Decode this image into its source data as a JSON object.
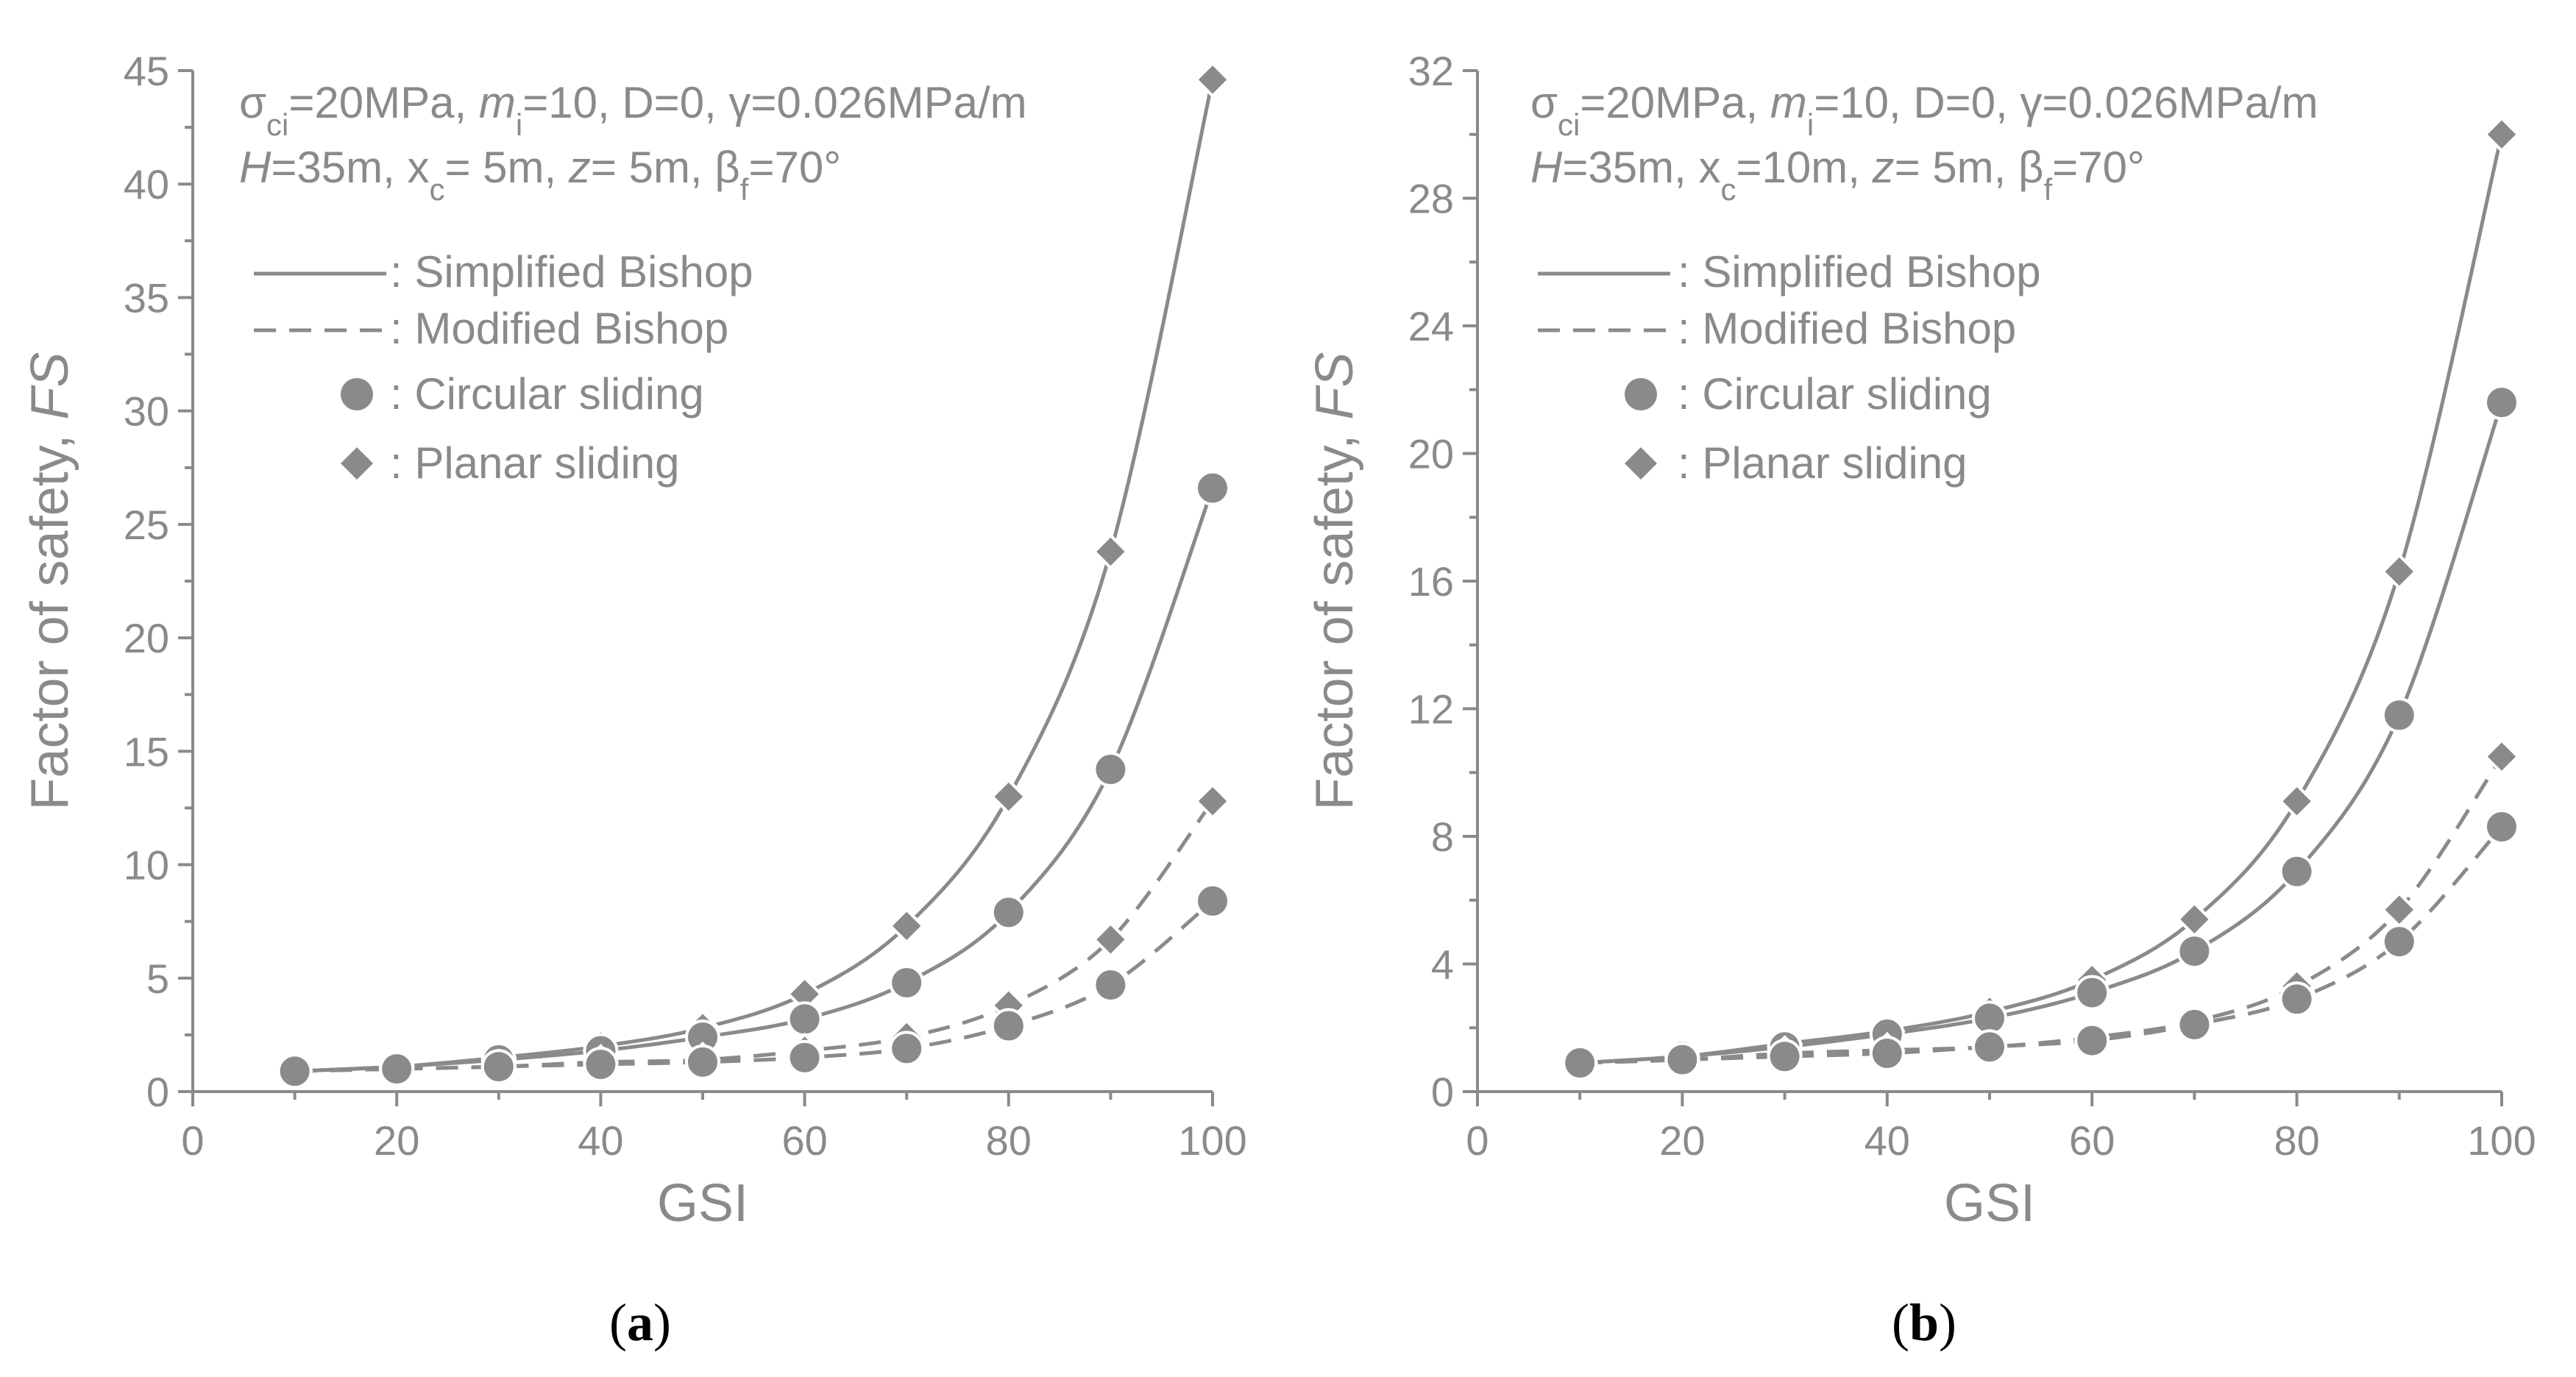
{
  "colors": {
    "ink": "#8a8a8a",
    "marker_outline": "#ffffff",
    "label": "#000000"
  },
  "chart_data": [
    {
      "type": "line",
      "panel_label_open": "(",
      "panel_label_letter": "a",
      "panel_label_close": ")",
      "xlabel": "GSI",
      "ylabel_main": "Factor of safety, ",
      "ylabel_italic": "FS",
      "xlim": [
        0,
        100
      ],
      "ylim": [
        0,
        45
      ],
      "xticks": [
        0,
        20,
        40,
        60,
        80,
        100
      ],
      "yticks": [
        0,
        5,
        10,
        15,
        20,
        25,
        30,
        35,
        40,
        45
      ],
      "grid": false,
      "annotation": {
        "line1": {
          "sigma": "σ",
          "ci": "ci",
          "p1": "=20MPa, ",
          "m": "m",
          "i": "i",
          "p2": "=10, D=0, γ=0.026MPa/m"
        },
        "line2": {
          "H": "H",
          "p1": "=35m, x",
          "c": "c",
          "p2": "= 5m, ",
          "z": "z",
          "p3": "= 5m,  β",
          "f": "f",
          "p4": "=70°"
        }
      },
      "legend": [
        {
          "marker": "solid-line",
          "label": ": Simplified Bishop"
        },
        {
          "marker": "dashed-line",
          "label": ": Modified Bishop"
        },
        {
          "marker": "circle",
          "label": ": Circular sliding"
        },
        {
          "marker": "diamond",
          "label": ": Planar sliding"
        }
      ],
      "x": [
        10,
        20,
        30,
        40,
        50,
        60,
        70,
        80,
        90,
        100
      ],
      "series": [
        {
          "name": "Simplified Bishop - Planar sliding",
          "line": "solid",
          "marker": "diamond",
          "values": [
            0.9,
            1.1,
            1.5,
            2.0,
            2.8,
            4.3,
            7.3,
            13.0,
            23.8,
            44.6
          ]
        },
        {
          "name": "Simplified Bishop - Circular sliding",
          "line": "solid",
          "marker": "circle",
          "values": [
            0.9,
            1.1,
            1.4,
            1.8,
            2.4,
            3.2,
            4.8,
            7.9,
            14.2,
            26.6
          ]
        },
        {
          "name": "Modified Bishop - Planar sliding",
          "line": "dashed",
          "marker": "diamond",
          "values": [
            0.9,
            1.0,
            1.1,
            1.3,
            1.4,
            1.8,
            2.4,
            3.8,
            6.7,
            12.8
          ]
        },
        {
          "name": "Modified Bishop - Circular sliding",
          "line": "dashed",
          "marker": "circle",
          "values": [
            0.9,
            1.0,
            1.1,
            1.2,
            1.3,
            1.5,
            1.9,
            2.9,
            4.7,
            8.4
          ]
        }
      ]
    },
    {
      "type": "line",
      "panel_label_open": "(",
      "panel_label_letter": "b",
      "panel_label_close": ")",
      "xlabel": "GSI",
      "ylabel_main": "Factor of safety, ",
      "ylabel_italic": "FS",
      "xlim": [
        0,
        100
      ],
      "ylim": [
        0,
        32
      ],
      "xticks": [
        0,
        20,
        40,
        60,
        80,
        100
      ],
      "yticks": [
        0,
        4,
        8,
        12,
        16,
        20,
        24,
        28,
        32
      ],
      "grid": false,
      "annotation": {
        "line1": {
          "sigma": "σ",
          "ci": "ci",
          "p1": "=20MPa, ",
          "m": "m",
          "i": "i",
          "p2": "=10, D=0, γ=0.026MPa/m"
        },
        "line2": {
          "H": "H",
          "p1": "=35m, x",
          "c": "c",
          "p2": "=10m, ",
          "z": "z",
          "p3": "= 5m,  β",
          "f": "f",
          "p4": "=70°"
        }
      },
      "legend": [
        {
          "marker": "solid-line",
          "label": ": Simplified Bishop"
        },
        {
          "marker": "dashed-line",
          "label": ": Modified Bishop"
        },
        {
          "marker": "circle",
          "label": ": Circular sliding"
        },
        {
          "marker": "diamond",
          "label": ": Planar sliding"
        }
      ],
      "x": [
        10,
        20,
        30,
        40,
        50,
        60,
        70,
        80,
        90,
        100
      ],
      "series": [
        {
          "name": "Simplified Bishop - Planar sliding",
          "line": "solid",
          "marker": "diamond",
          "values": [
            0.9,
            1.1,
            1.5,
            1.9,
            2.5,
            3.5,
            5.4,
            9.1,
            16.3,
            30.0
          ]
        },
        {
          "name": "Simplified Bishop - Circular sliding",
          "line": "solid",
          "marker": "circle",
          "values": [
            0.9,
            1.1,
            1.4,
            1.8,
            2.3,
            3.1,
            4.4,
            6.9,
            11.8,
            21.6
          ]
        },
        {
          "name": "Modified Bishop - Planar sliding",
          "line": "dashed",
          "marker": "diamond",
          "values": [
            0.9,
            1.0,
            1.2,
            1.3,
            1.4,
            1.7,
            2.2,
            3.3,
            5.7,
            10.5
          ]
        },
        {
          "name": "Modified Bishop - Circular sliding",
          "line": "dashed",
          "marker": "circle",
          "values": [
            0.9,
            1.0,
            1.1,
            1.2,
            1.4,
            1.6,
            2.1,
            2.9,
            4.7,
            8.3
          ]
        }
      ]
    }
  ]
}
